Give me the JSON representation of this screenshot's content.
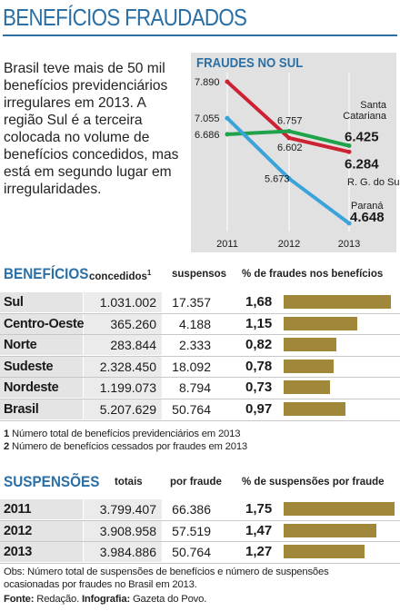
{
  "title": "BENEFÍCIOS FRAUDADOS",
  "intro": "Brasil teve mais de 50 mil benefícios previdenciários irregulares em 2013. A região Sul é a terceira colocada no volume de benefícios concedidos, mas está em segundo lugar em irregularidades.",
  "colors": {
    "accent": "#2a6fa5",
    "bar": "#a0873a",
    "santa_catarina": "#1fa24a",
    "rgs": "#cc2233",
    "parana": "#3aa3d9"
  },
  "line_chart": {
    "title": "FRAUDES NO SUL",
    "x_labels": [
      "2011",
      "2012",
      "2013"
    ],
    "value_labels": {
      "rgs": [
        "7.890",
        "6.602",
        "6.284"
      ],
      "sc": [
        "6.686",
        "6.757",
        "6.425"
      ],
      "pr": [
        "7.055",
        "5.673",
        "4.648"
      ]
    },
    "series_labels": {
      "sc": "Santa Catariana",
      "rgs": "R. G. do Sul",
      "pr": "Paraná"
    }
  },
  "beneficios": {
    "section_title": "BENEFÍCIOS",
    "col_concedidos": "concedidos",
    "col_concedidos_note": "1",
    "col_suspensos": "suspensos",
    "col_pct": "% de fraudes nos benefícios",
    "rows": [
      {
        "label": "Sul",
        "concedidos": "1.031.002",
        "suspensos": "17.357",
        "pct": "1,68"
      },
      {
        "label": "Centro-Oeste",
        "concedidos": "365.260",
        "suspensos": "4.188",
        "pct": "1,15"
      },
      {
        "label": "Norte",
        "concedidos": "283.844",
        "suspensos": "2.333",
        "pct": "0,82"
      },
      {
        "label": "Sudeste",
        "concedidos": "2.328.450",
        "suspensos": "18.092",
        "pct": "0,78"
      },
      {
        "label": "Nordeste",
        "concedidos": "1.199.073",
        "suspensos": "8.794",
        "pct": "0,73"
      },
      {
        "label": "Brasil",
        "concedidos": "5.207.629",
        "suspensos": "50.764",
        "pct": "0,97"
      }
    ],
    "footnote1_num": "1",
    "footnote1": "Número total de benefícios previdenciários em 2013",
    "footnote2_num": "2",
    "footnote2": "Número de benefícios cessados por fraudes em 2013"
  },
  "suspensoes": {
    "section_title": "SUSPENSÕES",
    "col_totais": "totais",
    "col_porfraude": "por fraude",
    "col_pct": "% de suspensões por fraude",
    "rows": [
      {
        "label": "2011",
        "totais": "3.799.407",
        "porfraude": "66.386",
        "pct": "1,75"
      },
      {
        "label": "2012",
        "totais": "3.908.958",
        "porfraude": "57.519",
        "pct": "1,47"
      },
      {
        "label": "2013",
        "totais": "3.984.886",
        "porfraude": "50.764",
        "pct": "1,27"
      }
    ]
  },
  "obs": "Obs: Número total de suspensões de benefícios e número de suspensões ocasionadas por fraudes no Brasil em 2013.",
  "fonte_label": "Fonte:",
  "fonte_value": "Redação.",
  "infografia_label": "Infografia:",
  "infografia_value": "Gazeta do Povo.",
  "chart_data": [
    {
      "type": "line",
      "title": "FRAUDES NO SUL",
      "x": [
        "2011",
        "2012",
        "2013"
      ],
      "series": [
        {
          "name": "R. G. do Sul",
          "values": [
            7890,
            6602,
            6284
          ]
        },
        {
          "name": "Santa Catariana",
          "values": [
            6686,
            6757,
            6425
          ]
        },
        {
          "name": "Paraná",
          "values": [
            7055,
            5673,
            4648
          ]
        }
      ]
    },
    {
      "type": "bar",
      "title": "% de fraudes nos benefícios",
      "categories": [
        "Sul",
        "Centro-Oeste",
        "Norte",
        "Sudeste",
        "Nordeste",
        "Brasil"
      ],
      "values": [
        1.68,
        1.15,
        0.82,
        0.78,
        0.73,
        0.97
      ]
    },
    {
      "type": "bar",
      "title": "% de suspensões por fraude",
      "categories": [
        "2011",
        "2012",
        "2013"
      ],
      "values": [
        1.75,
        1.47,
        1.27
      ]
    }
  ]
}
